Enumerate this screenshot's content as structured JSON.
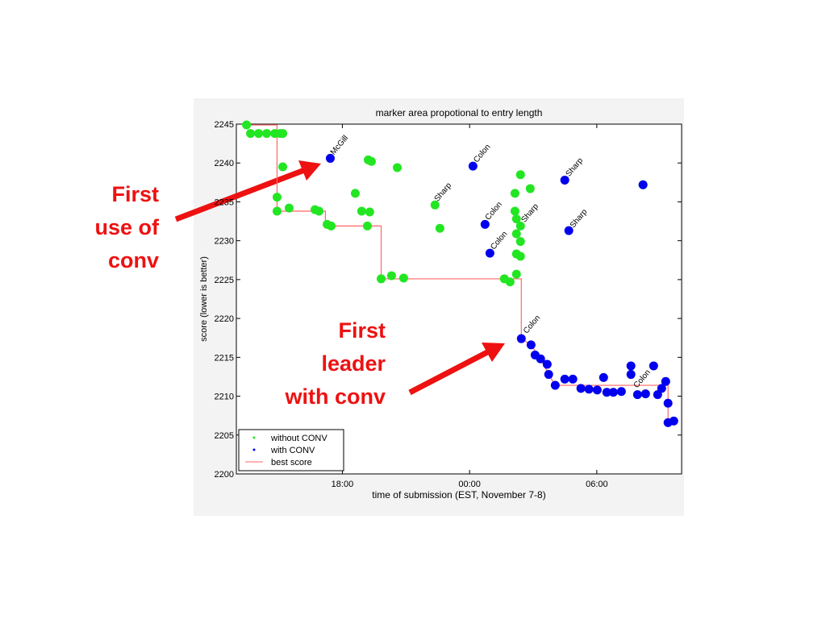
{
  "chart_data": {
    "type": "scatter",
    "title": "marker area propotional to entry length",
    "xlabel": "time of submission (EST, November 7-8)",
    "ylabel": "score (lower is better)",
    "xlim": [
      13,
      34
    ],
    "ylim": [
      2200,
      2245
    ],
    "xticks": [
      {
        "value": 18,
        "label": "18:00"
      },
      {
        "value": 24,
        "label": "00:00"
      },
      {
        "value": 30,
        "label": "06:00"
      }
    ],
    "yticks": [
      2200,
      2205,
      2210,
      2215,
      2220,
      2225,
      2230,
      2235,
      2240,
      2245
    ],
    "grid": false,
    "legend": "lower left",
    "series": [
      {
        "name": "without CONV",
        "color": "#22e622",
        "x": [
          13.48,
          13.67,
          14.05,
          14.43,
          14.81,
          15.07,
          15.19,
          15.19,
          14.92,
          14.92,
          15.49,
          16.71,
          16.9,
          17.28,
          17.47,
          18.61,
          18.91,
          19.29,
          19.18,
          19.22,
          19.37,
          20.59,
          19.83,
          20.32,
          20.89,
          22.37,
          22.6,
          25.64,
          25.91,
          26.21,
          26.4,
          26.86,
          26.14,
          26.14,
          26.21,
          26.4,
          26.21,
          26.4,
          26.21,
          26.4,
          32.18
        ],
        "values": [
          2244.9,
          2243.8,
          2243.8,
          2243.8,
          2243.8,
          2243.8,
          2243.8,
          2239.5,
          2235.6,
          2233.8,
          2234.2,
          2234.0,
          2233.8,
          2232.1,
          2231.9,
          2236.1,
          2233.8,
          2233.7,
          2231.9,
          2240.4,
          2240.2,
          2239.4,
          2225.1,
          2225.5,
          2225.2,
          2234.6,
          2231.6,
          2225.1,
          2224.7,
          2225.7,
          2238.5,
          2236.7,
          2236.1,
          2233.8,
          2232.8,
          2231.9,
          2230.9,
          2229.9,
          2228.3,
          2228.0,
          2237.2
        ]
      },
      {
        "name": "with CONV",
        "color": "#0000ee",
        "x": [
          17.43,
          24.16,
          24.73,
          24.96,
          28.49,
          28.68,
          32.18,
          26.44,
          26.9,
          27.09,
          27.35,
          27.66,
          27.73,
          28.04,
          28.49,
          28.87,
          29.25,
          29.63,
          30.02,
          30.32,
          30.47,
          30.78,
          31.16,
          31.61,
          31.61,
          31.92,
          32.3,
          32.68,
          32.87,
          33.06,
          33.25,
          33.36,
          33.36,
          33.63
        ],
        "values": [
          2240.6,
          2239.6,
          2232.1,
          2228.4,
          2237.8,
          2231.3,
          2237.2,
          2217.4,
          2216.6,
          2215.3,
          2214.8,
          2214.1,
          2212.8,
          2211.4,
          2212.2,
          2212.2,
          2211.0,
          2210.9,
          2210.8,
          2212.4,
          2210.5,
          2210.5,
          2210.6,
          2213.9,
          2212.8,
          2210.2,
          2210.3,
          2213.9,
          2210.2,
          2211.0,
          2211.9,
          2209.1,
          2206.6,
          2206.8
        ]
      }
    ],
    "line": {
      "name": "best score",
      "color": "#ff6666",
      "x": [
        13.48,
        14.92,
        14.92,
        17.2,
        17.2,
        19.83,
        19.83,
        26.44,
        26.44,
        26.9,
        27.35,
        27.73,
        28.04,
        33.36,
        33.36,
        33.63
      ],
      "values": [
        2244.9,
        2244.9,
        2233.8,
        2233.8,
        2231.9,
        2231.9,
        2225.1,
        2225.1,
        2217.4,
        2216.6,
        2214.8,
        2212.8,
        2211.4,
        2211.4,
        2206.6,
        2206.6
      ]
    },
    "annotations": [
      {
        "text": "McGill",
        "x": 17.6,
        "y": 2241
      },
      {
        "text": "Sharp",
        "x": 22.5,
        "y": 2235
      },
      {
        "text": "Colon",
        "x": 24.35,
        "y": 2240
      },
      {
        "text": "Colon",
        "x": 24.9,
        "y": 2232.6
      },
      {
        "text": "Colon",
        "x": 25.15,
        "y": 2228.8
      },
      {
        "text": "Sharp",
        "x": 26.6,
        "y": 2232.3
      },
      {
        "text": "Sharp",
        "x": 28.7,
        "y": 2238.2
      },
      {
        "text": "Sharp",
        "x": 28.9,
        "y": 2231.6
      },
      {
        "text": "Colon",
        "x": 26.7,
        "y": 2218
      },
      {
        "text": "Colon",
        "x": 31.9,
        "y": 2211
      }
    ]
  },
  "callouts": [
    {
      "lines": [
        "First",
        "use of",
        "conv"
      ]
    },
    {
      "lines": [
        "First",
        "leader",
        "with conv"
      ]
    }
  ]
}
